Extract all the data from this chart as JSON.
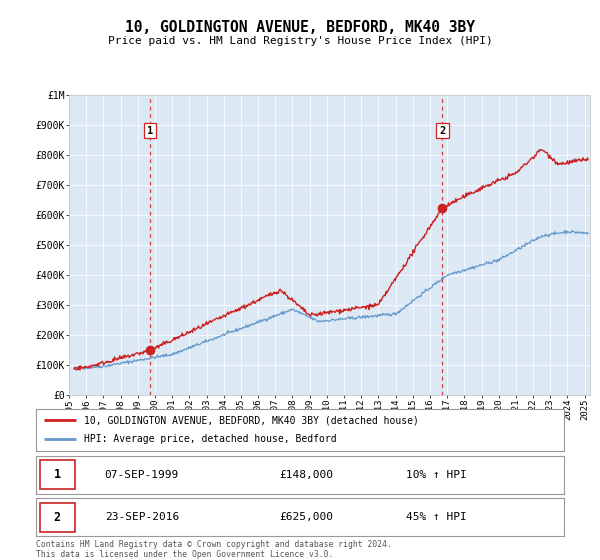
{
  "title": "10, GOLDINGTON AVENUE, BEDFORD, MK40 3BY",
  "subtitle": "Price paid vs. HM Land Registry's House Price Index (HPI)",
  "hpi_color": "#6699cc",
  "price_color": "#cc2222",
  "vline_color": "#cc2222",
  "plot_bg": "#dce9f5",
  "ylim": [
    0,
    1000000
  ],
  "xlim_start": 1995.3,
  "xlim_end": 2025.3,
  "yticks": [
    0,
    100000,
    200000,
    300000,
    400000,
    500000,
    600000,
    700000,
    800000,
    900000,
    1000000
  ],
  "ytick_labels": [
    "£0",
    "£100K",
    "£200K",
    "£300K",
    "£400K",
    "£500K",
    "£600K",
    "£700K",
    "£800K",
    "£900K",
    "£1M"
  ],
  "sale1_year": 1999.71,
  "sale1_price": 148000,
  "sale2_year": 2016.73,
  "sale2_price": 625000,
  "sale1_date": "07-SEP-1999",
  "sale1_hpi_pct": "10%",
  "sale2_date": "23-SEP-2016",
  "sale2_hpi_pct": "45%",
  "legend_label1": "10, GOLDINGTON AVENUE, BEDFORD, MK40 3BY (detached house)",
  "legend_label2": "HPI: Average price, detached house, Bedford",
  "footer": "Contains HM Land Registry data © Crown copyright and database right 2024.\nThis data is licensed under the Open Government Licence v3.0.",
  "xtick_years": [
    1995,
    1996,
    1997,
    1998,
    1999,
    2000,
    2001,
    2002,
    2003,
    2004,
    2005,
    2006,
    2007,
    2008,
    2009,
    2010,
    2011,
    2012,
    2013,
    2014,
    2015,
    2016,
    2017,
    2018,
    2019,
    2020,
    2021,
    2022,
    2023,
    2024,
    2025
  ]
}
